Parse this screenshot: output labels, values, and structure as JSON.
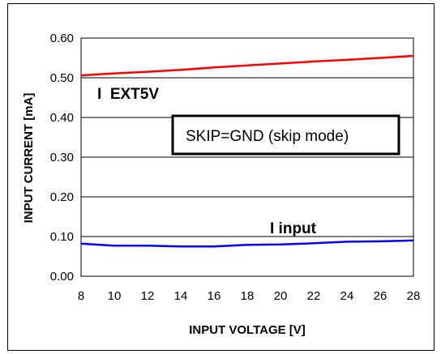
{
  "chart_data": {
    "type": "line",
    "title": "",
    "xlabel": "INPUT VOLTAGE [V]",
    "ylabel": "INPUT CURRENT [mA]",
    "xlim": [
      8,
      28
    ],
    "ylim": [
      0,
      0.6
    ],
    "x_ticks": [
      "8",
      "10",
      "12",
      "14",
      "16",
      "18",
      "20",
      "22",
      "24",
      "26",
      "28"
    ],
    "y_ticks": [
      "0.00",
      "0.10",
      "0.20",
      "0.30",
      "0.40",
      "0.50",
      "0.60"
    ],
    "grid": "horizontal",
    "annotation": "SKIP=GND (skip mode)",
    "series": [
      {
        "name": "I  EXT5V",
        "color": "#ff0000",
        "x": [
          8,
          10,
          12,
          14,
          16,
          18,
          20,
          22,
          24,
          26,
          28
        ],
        "values": [
          0.506,
          0.511,
          0.515,
          0.52,
          0.526,
          0.531,
          0.536,
          0.541,
          0.545,
          0.55,
          0.555
        ]
      },
      {
        "name": "I input",
        "color": "#0000ff",
        "x": [
          8,
          10,
          12,
          14,
          16,
          18,
          20,
          22,
          24,
          26,
          28
        ],
        "values": [
          0.082,
          0.077,
          0.077,
          0.075,
          0.075,
          0.079,
          0.08,
          0.083,
          0.087,
          0.088,
          0.09
        ]
      }
    ]
  }
}
